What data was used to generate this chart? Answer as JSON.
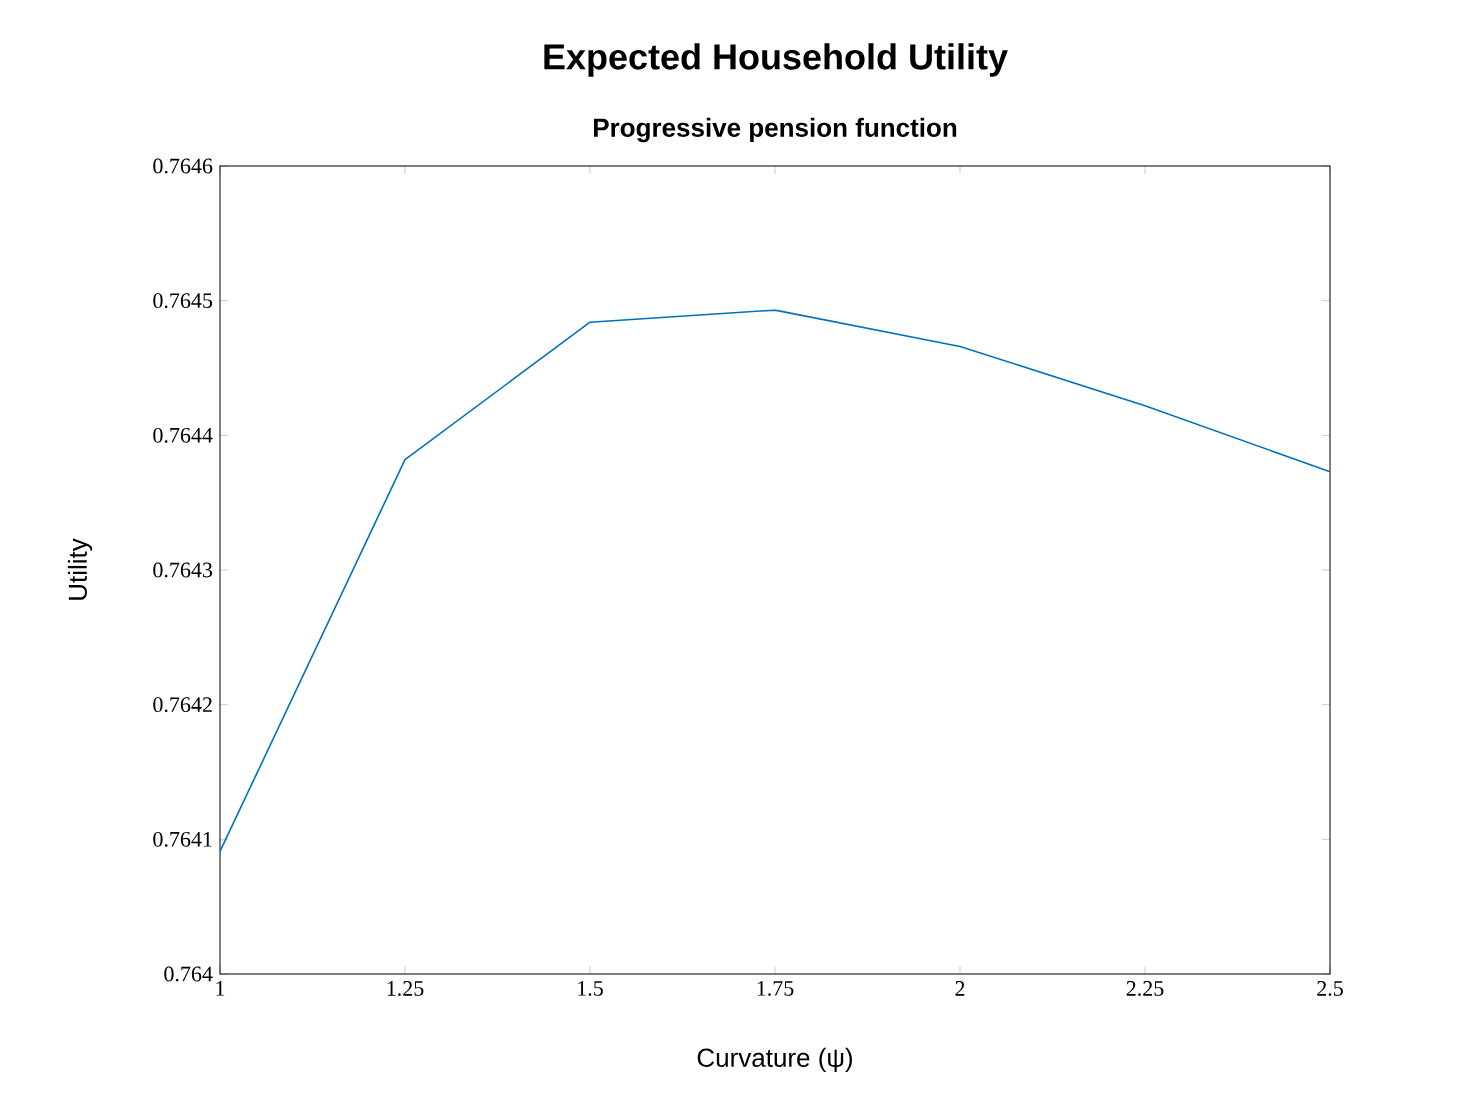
{
  "chart_data": {
    "type": "line",
    "title": "Expected Household Utility",
    "subtitle": "Progressive pension function",
    "xlabel": "Curvature (ψ)",
    "ylabel": "Utility",
    "x": [
      1,
      1.25,
      1.5,
      1.75,
      2,
      2.25,
      2.5
    ],
    "series": [
      {
        "color": "#0072bd",
        "values": [
          0.764091,
          0.764382,
          0.764484,
          0.764493,
          0.764466,
          0.764422,
          0.764373
        ]
      }
    ],
    "xlim": [
      1,
      2.5
    ],
    "xticks": [
      1,
      1.25,
      1.5,
      1.75,
      2,
      2.25,
      2.5
    ],
    "ylim": [
      0.764,
      0.7646
    ],
    "yticks": [
      0.764,
      0.7641,
      0.7642,
      0.7643,
      0.7644,
      0.7645,
      0.7646
    ],
    "line_style": "solid"
  }
}
